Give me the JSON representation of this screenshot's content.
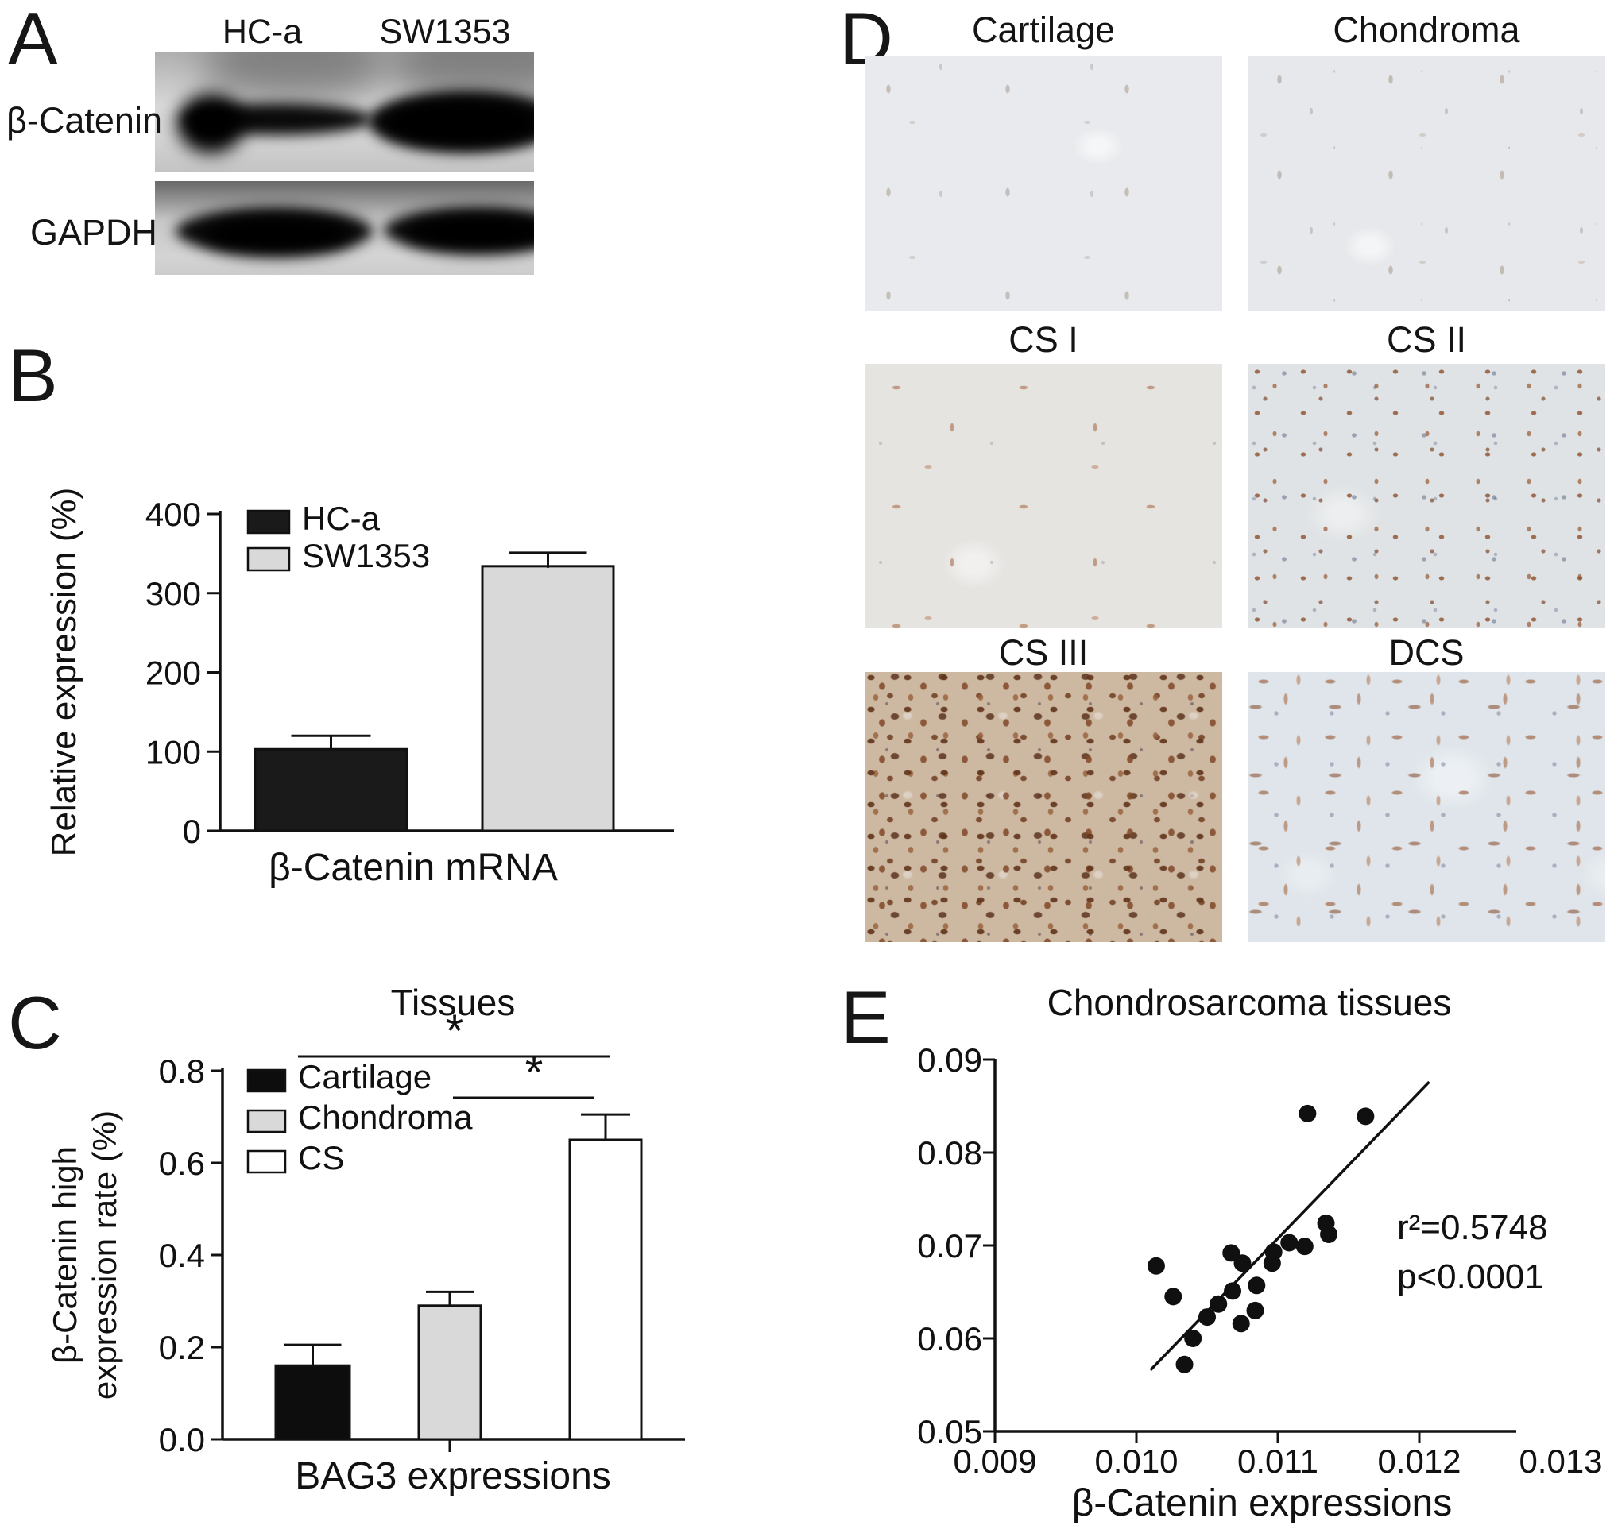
{
  "colors": {
    "ink": "#111111",
    "bar_black": "#0d0d0d",
    "bar_gray": "#d9d9d9",
    "bar_white": "#ffffff",
    "ihc_brown": "#8f5330",
    "ihc_slate": "#64748f"
  },
  "panelA": {
    "letter": "A",
    "lane_labels": [
      "HC-a",
      "SW1353"
    ],
    "row_labels": [
      "β-Catenin",
      "GAPDH"
    ]
  },
  "panelD": {
    "letter": "D",
    "images": [
      {
        "label": "Cartilage",
        "texture": "cartilage"
      },
      {
        "label": "Chondroma",
        "texture": "chondroma"
      },
      {
        "label": "CS I",
        "texture": "cs1"
      },
      {
        "label": "CS II",
        "texture": "cs2"
      },
      {
        "label": "CS III",
        "texture": "cs3"
      },
      {
        "label": "DCS",
        "texture": "dcs"
      }
    ]
  },
  "chart_data": [
    {
      "id": "panel-b",
      "letter": "B",
      "type": "bar",
      "title": "",
      "categories": [
        "HC-a",
        "SW1353"
      ],
      "values": [
        103,
        334
      ],
      "errors": [
        17,
        17
      ],
      "bar_colors": [
        "#1a1a1a",
        "#d9d9d9"
      ],
      "ylabel": "Relative expression (%)",
      "xlabel": "β-Catenin mRNA",
      "yticks": [
        "0",
        "100",
        "200",
        "300",
        "400"
      ],
      "ylim": [
        0,
        400
      ],
      "grid": false,
      "legend_position": "top-left",
      "legend": [
        {
          "label": "HC-a",
          "color": "#1a1a1a"
        },
        {
          "label": "SW1353",
          "color": "#d9d9d9"
        }
      ]
    },
    {
      "id": "panel-c",
      "letter": "C",
      "type": "bar",
      "title": "Tissues",
      "categories": [
        "Cartilage",
        "Chondroma",
        "CS"
      ],
      "values": [
        0.16,
        0.29,
        0.65
      ],
      "errors": [
        0.045,
        0.03,
        0.055
      ],
      "bar_colors": [
        "#0d0d0d",
        "#d9d9d9",
        "#ffffff"
      ],
      "ylabel_lines": [
        "β-Catenin high",
        "expression rate (%)"
      ],
      "xlabel": "BAG3 expressions",
      "yticks": [
        "0.0",
        "0.2",
        "0.4",
        "0.6",
        "0.8"
      ],
      "ylim": [
        0,
        0.8
      ],
      "grid": false,
      "legend_position": "top-left",
      "legend": [
        {
          "label": "Cartilage",
          "color": "#0d0d0d"
        },
        {
          "label": "Chondroma",
          "color": "#d9d9d9"
        },
        {
          "label": "CS",
          "color": "#ffffff"
        }
      ],
      "significance": [
        {
          "label": "*",
          "pair": "Cartilage vs CS"
        },
        {
          "label": "*",
          "pair": "Chondroma vs CS"
        }
      ]
    },
    {
      "id": "panel-e",
      "letter": "E",
      "type": "scatter",
      "title": "Chondrosarcoma tissues",
      "xlabel": "β-Catenin expressions",
      "xticks": [
        "0.009",
        "0.010",
        "0.011",
        "0.012",
        "0.013"
      ],
      "yticks": [
        "0.05",
        "0.06",
        "0.07",
        "0.08",
        "0.09"
      ],
      "xlim": [
        0.009,
        0.013
      ],
      "ylim": [
        0.05,
        0.09
      ],
      "points": [
        [
          0.01014,
          0.0678
        ],
        [
          0.01026,
          0.0645
        ],
        [
          0.01034,
          0.0572
        ],
        [
          0.0104,
          0.06
        ],
        [
          0.0105,
          0.0623
        ],
        [
          0.01058,
          0.0637
        ],
        [
          0.01067,
          0.0692
        ],
        [
          0.01068,
          0.0651
        ],
        [
          0.01074,
          0.0616
        ],
        [
          0.01075,
          0.0681
        ],
        [
          0.01084,
          0.063
        ],
        [
          0.01085,
          0.0657
        ],
        [
          0.01096,
          0.0681
        ],
        [
          0.01097,
          0.0693
        ],
        [
          0.01108,
          0.0703
        ],
        [
          0.01119,
          0.0699
        ],
        [
          0.01121,
          0.0842
        ],
        [
          0.01134,
          0.0724
        ],
        [
          0.01136,
          0.0712
        ],
        [
          0.01162,
          0.0839
        ]
      ],
      "trendline": {
        "x1": 0.0101,
        "y1": 0.0566,
        "x2": 0.01207,
        "y2": 0.0876
      },
      "annotations": [
        {
          "text": "r²=0.5748"
        },
        {
          "text": "p<0.0001"
        }
      ]
    }
  ]
}
